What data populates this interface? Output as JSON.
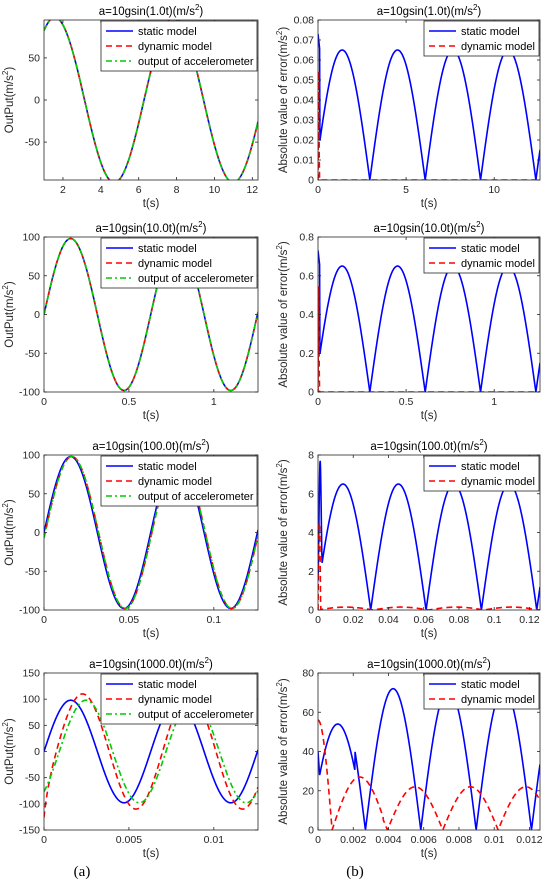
{
  "figure": {
    "caption_left": "(a)",
    "caption_right": "(b)"
  },
  "chart_data": [
    {
      "id": "a1",
      "type": "line",
      "title": "a=10gsin(1.0t)(m/s2)",
      "title_sup": "2",
      "xlabel": "t(s)",
      "ylabel": "OutPut(m/s2)",
      "xlim": [
        1,
        12.3
      ],
      "ylim": [
        -95,
        95
      ],
      "xticks": [
        2,
        4,
        6,
        8,
        10,
        12
      ],
      "yticks": [
        -50,
        0,
        50
      ],
      "legend": {
        "position": "top-right",
        "entries": [
          "static model",
          "dynamic model",
          "output of accelerometer"
        ]
      },
      "series": [
        {
          "name": "static model",
          "color": "#0000ff",
          "dash": "solid",
          "function": "98*sin(1.0*t)"
        },
        {
          "name": "dynamic model",
          "color": "#ff0000",
          "dash": "dashed",
          "function": "98*sin(1.0*t)"
        },
        {
          "name": "output of accelerometer",
          "color": "#00cc00",
          "dash": "dashdot",
          "function": "98*sin(1.0*t)"
        }
      ]
    },
    {
      "id": "b1",
      "type": "line",
      "title": "a=10gsin(1.0t)(m/s2)",
      "title_sup": "2",
      "xlabel": "t(s)",
      "ylabel": "Absolute value of error(m/s2)",
      "xlim": [
        0,
        12.6
      ],
      "ylim": [
        0,
        0.08
      ],
      "xticks": [
        0,
        5,
        10
      ],
      "yticks": [
        0,
        0.01,
        0.02,
        0.03,
        0.04,
        0.05,
        0.06,
        0.07,
        0.08
      ],
      "legend": {
        "position": "top-right",
        "entries": [
          "static model",
          "dynamic model"
        ]
      },
      "series": [
        {
          "name": "static model",
          "color": "#0000ff",
          "dash": "solid",
          "function": "0.065*|sin(1.0*t+0.2)|",
          "peak": [
            0.05,
            0.073
          ]
        },
        {
          "name": "dynamic model",
          "color": "#ff0000",
          "dash": "dashed",
          "function": "0",
          "spike": [
            0.1,
            0.062
          ]
        }
      ]
    },
    {
      "id": "a2",
      "type": "line",
      "title": "a=10gsin(10.0t)(m/s2)",
      "title_sup": "2",
      "xlabel": "t(s)",
      "ylabel": "OutPut(m/s2)",
      "xlim": [
        0,
        1.26
      ],
      "ylim": [
        -100,
        100
      ],
      "xticks": [
        0,
        0.5,
        1
      ],
      "yticks": [
        -100,
        -50,
        0,
        50,
        100
      ],
      "legend": {
        "position": "top-right",
        "entries": [
          "static model",
          "dynamic model",
          "output of accelerometer"
        ]
      },
      "series": [
        {
          "name": "static model",
          "color": "#0000ff",
          "dash": "solid",
          "function": "98*sin(10.0*t)"
        },
        {
          "name": "dynamic model",
          "color": "#ff0000",
          "dash": "dashed",
          "function": "98*sin(10.0*t)"
        },
        {
          "name": "output of accelerometer",
          "color": "#00cc00",
          "dash": "dashdot",
          "function": "98*sin(10.0*t)"
        }
      ]
    },
    {
      "id": "b2",
      "type": "line",
      "title": "a=10gsin(10.0t)(m/s2)",
      "title_sup": "2",
      "xlabel": "t(s)",
      "ylabel": "Absolute value of error(m/s2)",
      "xlim": [
        0,
        1.26
      ],
      "ylim": [
        0,
        0.8
      ],
      "xticks": [
        0,
        0.5,
        1
      ],
      "yticks": [
        0,
        0.2,
        0.4,
        0.6,
        0.8
      ],
      "legend": {
        "position": "top-right",
        "entries": [
          "static model",
          "dynamic model"
        ]
      },
      "series": [
        {
          "name": "static model",
          "color": "#0000ff",
          "dash": "solid",
          "function": "0.65*|sin(10.0*t+0.2)|",
          "peak": [
            0.005,
            0.73
          ]
        },
        {
          "name": "dynamic model",
          "color": "#ff0000",
          "dash": "dashed",
          "function": "0",
          "spike": [
            0.01,
            0.62
          ]
        }
      ]
    },
    {
      "id": "a3",
      "type": "line",
      "title": "a=10gsin(100.0t)(m/s2)",
      "title_sup": "2",
      "xlabel": "t(s)",
      "ylabel": "OutPut(m/s2)",
      "xlim": [
        0,
        0.126
      ],
      "ylim": [
        -100,
        100
      ],
      "xticks": [
        0,
        0.05,
        0.1
      ],
      "yticks": [
        -100,
        -50,
        0,
        50,
        100
      ],
      "legend": {
        "position": "top-right",
        "entries": [
          "static model",
          "dynamic model",
          "output of accelerometer"
        ]
      },
      "series": [
        {
          "name": "static model",
          "color": "#0000ff",
          "dash": "solid",
          "function": "98*sin(100.0*t)"
        },
        {
          "name": "dynamic model",
          "color": "#ff0000",
          "dash": "dashed",
          "function": "98*sin(100.0*(t-0.0007))"
        },
        {
          "name": "output of accelerometer",
          "color": "#00cc00",
          "dash": "dashdot",
          "function": "98*sin(100.0*(t-0.0007))"
        }
      ]
    },
    {
      "id": "b3",
      "type": "line",
      "title": "a=10gsin(100.0t)(m/s2)",
      "title_sup": "2",
      "xlabel": "t(s)",
      "ylabel": "Absolute value of error(m/s2)",
      "xlim": [
        0,
        0.126
      ],
      "ylim": [
        0,
        8
      ],
      "xticks": [
        0,
        0.02,
        0.04,
        0.06,
        0.08,
        0.1,
        0.12
      ],
      "yticks": [
        0,
        2,
        4,
        6,
        8
      ],
      "legend": {
        "position": "top-right",
        "entries": [
          "static model",
          "dynamic model"
        ]
      },
      "series": [
        {
          "name": "static model",
          "color": "#0000ff",
          "dash": "solid",
          "function": "6.5*|sin(100.0*t+0.15)|",
          "peak": [
            0.0012,
            7.2
          ]
        },
        {
          "name": "dynamic model",
          "color": "#ff0000",
          "dash": "dashed",
          "function": "0.15*|sin(100.0*t)|",
          "spike": [
            0.001,
            4.5
          ]
        }
      ]
    },
    {
      "id": "a4",
      "type": "line",
      "title": "a=10gsin(1000.0t)(m/s2)",
      "title_sup": "2",
      "xlabel": "t(s)",
      "ylabel": "OutPut(m/s2)",
      "xlim": [
        0,
        0.0126
      ],
      "ylim": [
        -150,
        150
      ],
      "xticks": [
        0,
        0.005,
        0.01
      ],
      "yticks": [
        -150,
        -100,
        -50,
        0,
        50,
        100,
        150
      ],
      "legend": {
        "position": "top-right",
        "entries": [
          "static model",
          "dynamic model",
          "output of accelerometer"
        ]
      },
      "series": [
        {
          "name": "static model",
          "color": "#0000ff",
          "dash": "solid",
          "function": "98*sin(1000.0*t)"
        },
        {
          "name": "dynamic model",
          "color": "#ff0000",
          "dash": "dashed",
          "function": "110*sin(1000.0*(t-0.0007))-55*e^(-t/0.00025)"
        },
        {
          "name": "output of accelerometer",
          "color": "#00cc00",
          "dash": "dashdot",
          "function": "98*sin(1000.0*(t-0.0009))"
        }
      ]
    },
    {
      "id": "b4",
      "type": "line",
      "title": "a=10gsin(1000.0t)(m/s2)",
      "title_sup": "2",
      "xlabel": "t(s)",
      "ylabel": "Absolute value of error(m/s2)",
      "xlim": [
        0,
        0.0126
      ],
      "ylim": [
        0,
        80
      ],
      "xticks": [
        0,
        0.002,
        0.004,
        0.006,
        0.008,
        0.01,
        0.012
      ],
      "yticks": [
        0,
        20,
        40,
        60,
        80
      ],
      "legend": {
        "position": "top-right",
        "entries": [
          "static model",
          "dynamic model"
        ]
      },
      "series": [
        {
          "name": "static model",
          "color": "#0000ff",
          "dash": "solid",
          "function": "|sin(1000.0*t+0.45)| envelope 54 then 72"
        },
        {
          "name": "dynamic model",
          "color": "#ff0000",
          "dash": "dashed",
          "function": "|sin(1000.0*t)| envelope 27 then 22",
          "start": 56
        }
      ]
    }
  ]
}
